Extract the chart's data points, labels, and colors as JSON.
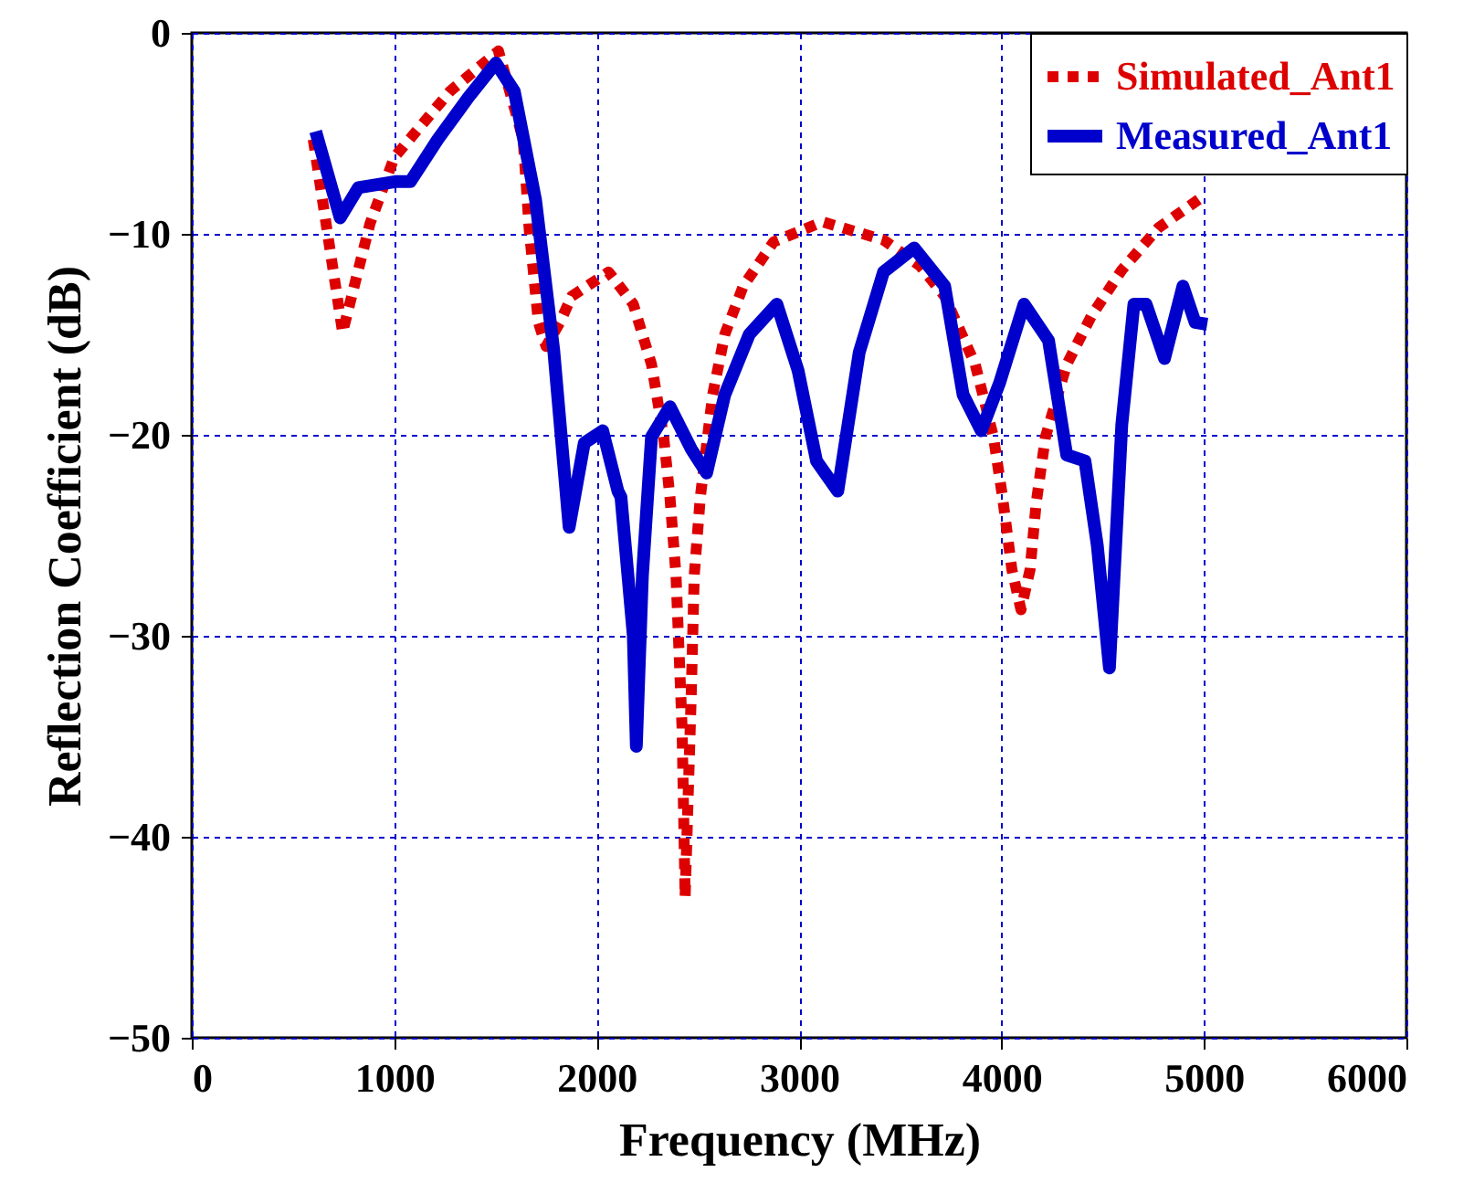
{
  "chart_data": {
    "type": "line",
    "xlabel": "Frequency (MHz)",
    "ylabel": "Reflection Coefficient (dB)",
    "xlim": [
      0,
      6000
    ],
    "ylim": [
      -50,
      0
    ],
    "xticks": [
      0,
      1000,
      2000,
      3000,
      4000,
      5000,
      6000
    ],
    "yticks": [
      -50,
      -40,
      -30,
      -20,
      -10,
      0
    ],
    "grid": true,
    "legend": "top right",
    "series": [
      {
        "name": "Simulated_Ant1",
        "color": "#dd0000",
        "line_style": "dotted",
        "x": [
          600,
          745,
          880,
          1000,
          1276,
          1515,
          1637,
          1667,
          1712,
          1750,
          1819,
          1877,
          2059,
          2181,
          2271,
          2331,
          2362,
          2392,
          2422,
          2437,
          2467,
          2482,
          2512,
          2573,
          2633,
          2724,
          2874,
          3116,
          3417,
          3598,
          3719,
          3870,
          3960,
          4005,
          4051,
          4096,
          4141,
          4171,
          4217,
          4322,
          4443,
          4594,
          4775,
          4986
        ],
        "values": [
          -5.3,
          -14.9,
          -9.5,
          -6.2,
          -2.9,
          -0.9,
          -5.3,
          -9.8,
          -14.4,
          -15.6,
          -14.4,
          -13.1,
          -11.9,
          -13.5,
          -16.5,
          -20.1,
          -23.1,
          -27,
          -34.6,
          -43,
          -33,
          -27,
          -23.1,
          -18,
          -15,
          -12.6,
          -10.4,
          -9.4,
          -10.3,
          -11.6,
          -13.1,
          -16.5,
          -20.1,
          -23.1,
          -26.7,
          -28.7,
          -26.7,
          -23.4,
          -20.1,
          -16.5,
          -14.1,
          -11.8,
          -9.7,
          -8.2
        ]
      },
      {
        "name": "Measured_Ant1",
        "color": "#0000cc",
        "line_style": "solid",
        "x": [
          612,
          733,
          823,
          1005,
          1080,
          1215,
          1367,
          1502,
          1593,
          1698,
          1788,
          1864,
          1939,
          2030,
          2105,
          2120,
          2181,
          2196,
          2226,
          2271,
          2362,
          2467,
          2543,
          2633,
          2754,
          2890,
          2995,
          3086,
          3191,
          3297,
          3417,
          3568,
          3719,
          3810,
          3900,
          3991,
          4111,
          4232,
          4322,
          4412,
          4473,
          4533,
          4594,
          4654,
          4714,
          4805,
          4896,
          4956,
          5016
        ],
        "values": [
          -4.9,
          -9.2,
          -7.7,
          -7.4,
          -7.4,
          -5.3,
          -3.2,
          -1.5,
          -2.9,
          -8.3,
          -15.8,
          -24.6,
          -20.4,
          -19.8,
          -22.8,
          -23.1,
          -30,
          -35.5,
          -27,
          -20.1,
          -18.6,
          -20.7,
          -21.9,
          -18,
          -15,
          -13.5,
          -16.8,
          -21.3,
          -22.8,
          -15.9,
          -11.9,
          -10.7,
          -12.6,
          -18,
          -19.8,
          -17.4,
          -13.5,
          -15.3,
          -21,
          -21.3,
          -25.5,
          -31.6,
          -19.5,
          -13.5,
          -13.5,
          -16.2,
          -12.6,
          -14.4,
          -14.5
        ]
      }
    ]
  }
}
